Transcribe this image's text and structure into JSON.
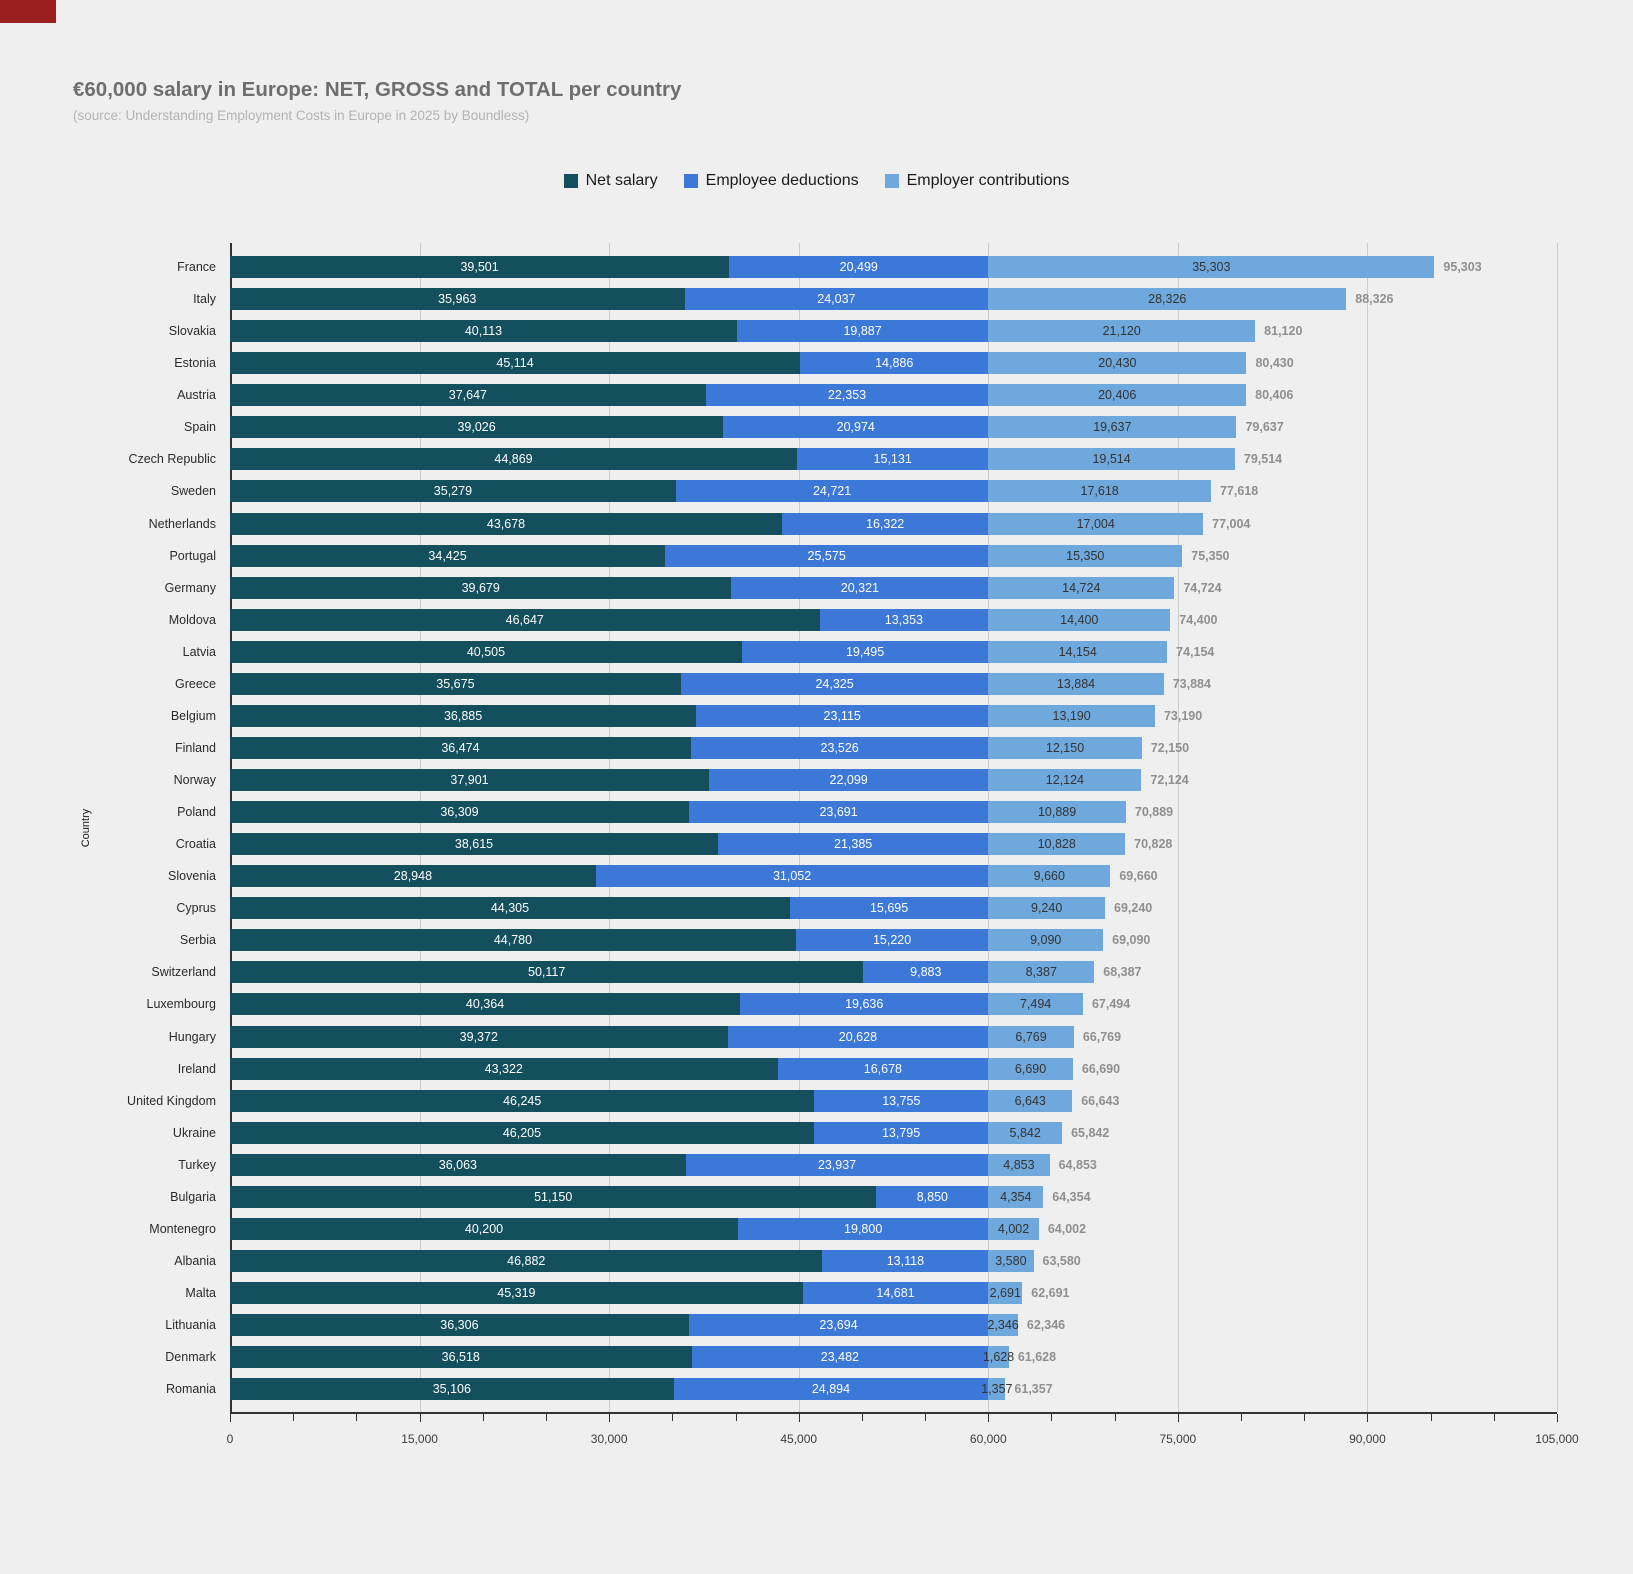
{
  "header": {
    "title": "€60,000 salary in Europe: NET, GROSS and TOTAL per country",
    "subtitle": "(source: Understanding Employment Costs in Europe in 2025 by Boundless)"
  },
  "legend": [
    {
      "key": "net-salary",
      "label": "Net salary",
      "color": "#134f5c"
    },
    {
      "key": "employee-deductions",
      "label": "Employee deductions",
      "color": "#3c78d8"
    },
    {
      "key": "employer-contributions",
      "label": "Employer contributions",
      "color": "#6fa8dc"
    }
  ],
  "axes": {
    "y_title": "Country",
    "x_tick_labels": [
      "0",
      "15,000",
      "30,000",
      "45,000",
      "60,000",
      "75,000",
      "90,000",
      "105,000"
    ],
    "x_max": 105000,
    "x_major_interval": 15000,
    "x_minor_interval": 5000,
    "grid": "vertical-major"
  },
  "colors": {
    "background": "#efefef",
    "gridline": "#cccccc",
    "axis": "#333333",
    "total_label": "#8f8f8f",
    "corner_marker": "#9c1f1f"
  },
  "chart_data": {
    "type": "bar",
    "orientation": "horizontal",
    "stacked": true,
    "title": "€60,000 salary in Europe: NET, GROSS and TOTAL per country",
    "subtitle": "(source: Understanding Employment Costs in Europe in 2025 by Boundless)",
    "xlabel": "",
    "ylabel": "Country",
    "xlim": [
      0,
      105000
    ],
    "legend_position": "top",
    "categories": [
      "France",
      "Italy",
      "Slovakia",
      "Estonia",
      "Austria",
      "Spain",
      "Czech Republic",
      "Sweden",
      "Netherlands",
      "Portugal",
      "Germany",
      "Moldova",
      "Latvia",
      "Greece",
      "Belgium",
      "Finland",
      "Norway",
      "Poland",
      "Croatia",
      "Slovenia",
      "Cyprus",
      "Serbia",
      "Switzerland",
      "Luxembourg",
      "Hungary",
      "Ireland",
      "United Kingdom",
      "Ukraine",
      "Turkey",
      "Bulgaria",
      "Montenegro",
      "Albania",
      "Malta",
      "Lithuania",
      "Denmark",
      "Romania"
    ],
    "series": [
      {
        "name": "Net salary",
        "key": "net-salary",
        "color": "#134f5c",
        "label_color": "#ffffff",
        "values": [
          39501,
          35963,
          40113,
          45114,
          37647,
          39026,
          44869,
          35279,
          43678,
          34425,
          39679,
          46647,
          40505,
          35675,
          36885,
          36474,
          37901,
          36309,
          38615,
          28948,
          44305,
          44780,
          50117,
          40364,
          39372,
          43322,
          46245,
          46205,
          36063,
          51150,
          40200,
          46882,
          45319,
          36306,
          36518,
          35106
        ]
      },
      {
        "name": "Employee deductions",
        "key": "employee-deductions",
        "color": "#3c78d8",
        "label_color": "#ffffff",
        "values": [
          20499,
          24037,
          19887,
          14886,
          22353,
          20974,
          15131,
          24721,
          16322,
          25575,
          20321,
          13353,
          19495,
          24325,
          23115,
          23526,
          22099,
          23691,
          21385,
          31052,
          15695,
          15220,
          9883,
          19636,
          20628,
          16678,
          13755,
          13795,
          23937,
          8850,
          19800,
          13118,
          14681,
          23694,
          23482,
          24894
        ]
      },
      {
        "name": "Employer contributions",
        "key": "employer-contributions",
        "color": "#6fa8dc",
        "label_color": "#333333",
        "values": [
          35303,
          28326,
          21120,
          20430,
          20406,
          19637,
          19514,
          17618,
          17004,
          15350,
          14724,
          14400,
          14154,
          13884,
          13190,
          12150,
          12124,
          10889,
          10828,
          9660,
          9240,
          9090,
          8387,
          7494,
          6769,
          6690,
          6643,
          5842,
          4853,
          4354,
          4002,
          3580,
          2691,
          2346,
          1628,
          1357
        ]
      }
    ],
    "totals": [
      95303,
      88326,
      81120,
      80430,
      80406,
      79637,
      79514,
      77618,
      77004,
      75350,
      74724,
      74400,
      74154,
      73884,
      73190,
      72150,
      72124,
      70889,
      70828,
      69660,
      69240,
      69090,
      68387,
      67494,
      66769,
      66690,
      66643,
      65842,
      64853,
      64354,
      64002,
      63580,
      62691,
      62346,
      61628,
      61357
    ]
  }
}
